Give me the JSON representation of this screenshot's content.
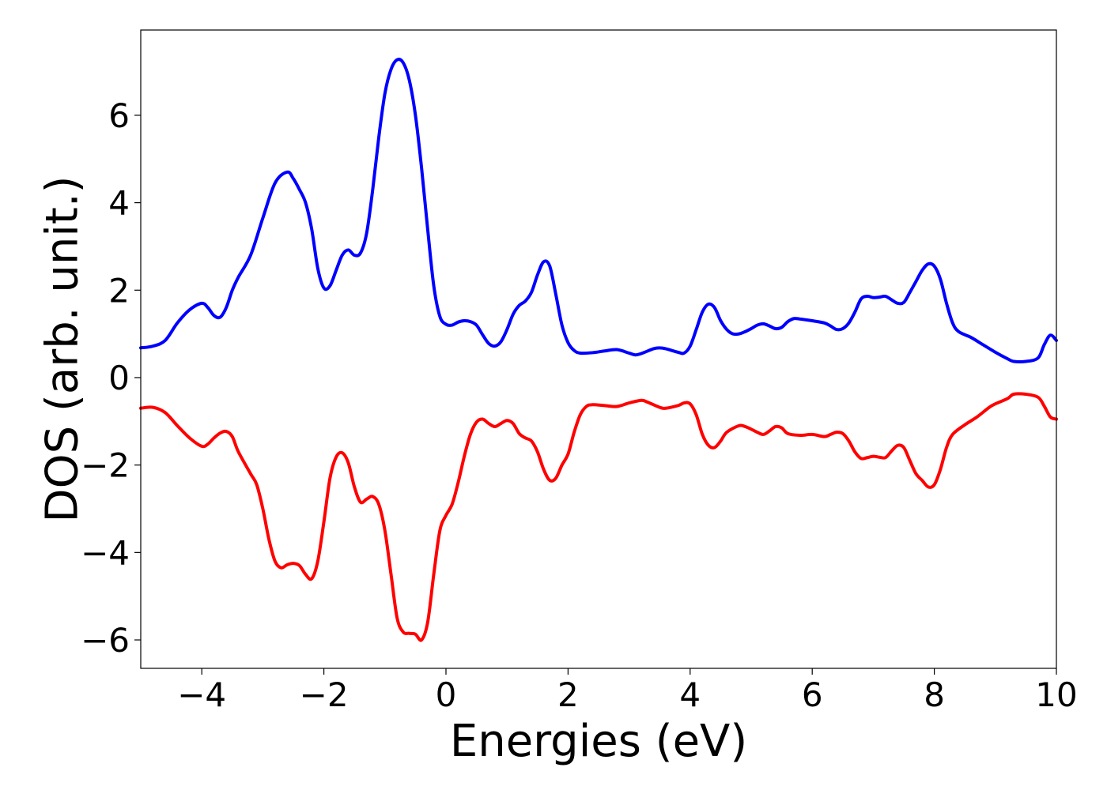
{
  "chart_data": {
    "type": "line",
    "title": "",
    "xlabel": "Energies (eV)",
    "ylabel": "DOS (arb. unit.)",
    "xlim": [
      -5,
      10
    ],
    "ylim": [
      -6.65,
      7.95
    ],
    "grid": false,
    "legend": "none",
    "x_ticks": [
      -4,
      -2,
      0,
      2,
      4,
      6,
      8,
      10
    ],
    "y_ticks": [
      -6,
      -4,
      -2,
      0,
      2,
      4,
      6
    ],
    "x_tick_labels": [
      "−4",
      "−2",
      "0",
      "2",
      "4",
      "6",
      "8",
      "10"
    ],
    "y_tick_labels": [
      "−6",
      "−4",
      "−2",
      "0",
      "2",
      "4",
      "6"
    ],
    "series": [
      {
        "color": "#0000ff",
        "points": [
          [
            -5.0,
            0.68
          ],
          [
            -4.8,
            0.72
          ],
          [
            -4.6,
            0.85
          ],
          [
            -4.4,
            1.25
          ],
          [
            -4.2,
            1.55
          ],
          [
            -4.0,
            1.7
          ],
          [
            -3.9,
            1.6
          ],
          [
            -3.8,
            1.42
          ],
          [
            -3.7,
            1.38
          ],
          [
            -3.6,
            1.6
          ],
          [
            -3.5,
            2.0
          ],
          [
            -3.4,
            2.3
          ],
          [
            -3.2,
            2.8
          ],
          [
            -3.0,
            3.65
          ],
          [
            -2.8,
            4.45
          ],
          [
            -2.6,
            4.7
          ],
          [
            -2.5,
            4.55
          ],
          [
            -2.4,
            4.3
          ],
          [
            -2.3,
            4.0
          ],
          [
            -2.2,
            3.4
          ],
          [
            -2.1,
            2.5
          ],
          [
            -2.0,
            2.05
          ],
          [
            -1.9,
            2.1
          ],
          [
            -1.8,
            2.45
          ],
          [
            -1.7,
            2.8
          ],
          [
            -1.6,
            2.92
          ],
          [
            -1.5,
            2.8
          ],
          [
            -1.4,
            2.85
          ],
          [
            -1.3,
            3.3
          ],
          [
            -1.2,
            4.3
          ],
          [
            -1.1,
            5.5
          ],
          [
            -1.0,
            6.5
          ],
          [
            -0.9,
            7.05
          ],
          [
            -0.8,
            7.27
          ],
          [
            -0.7,
            7.2
          ],
          [
            -0.6,
            6.8
          ],
          [
            -0.5,
            6.0
          ],
          [
            -0.4,
            4.8
          ],
          [
            -0.3,
            3.4
          ],
          [
            -0.2,
            2.1
          ],
          [
            -0.1,
            1.4
          ],
          [
            0.0,
            1.22
          ],
          [
            0.1,
            1.2
          ],
          [
            0.2,
            1.27
          ],
          [
            0.3,
            1.3
          ],
          [
            0.4,
            1.28
          ],
          [
            0.5,
            1.2
          ],
          [
            0.6,
            0.98
          ],
          [
            0.7,
            0.78
          ],
          [
            0.8,
            0.72
          ],
          [
            0.9,
            0.82
          ],
          [
            1.0,
            1.1
          ],
          [
            1.1,
            1.45
          ],
          [
            1.2,
            1.65
          ],
          [
            1.3,
            1.75
          ],
          [
            1.4,
            1.95
          ],
          [
            1.5,
            2.35
          ],
          [
            1.6,
            2.65
          ],
          [
            1.7,
            2.55
          ],
          [
            1.8,
            1.9
          ],
          [
            1.9,
            1.2
          ],
          [
            2.0,
            0.8
          ],
          [
            2.1,
            0.62
          ],
          [
            2.2,
            0.56
          ],
          [
            2.4,
            0.57
          ],
          [
            2.6,
            0.61
          ],
          [
            2.8,
            0.64
          ],
          [
            3.0,
            0.56
          ],
          [
            3.1,
            0.52
          ],
          [
            3.2,
            0.55
          ],
          [
            3.4,
            0.66
          ],
          [
            3.5,
            0.68
          ],
          [
            3.6,
            0.66
          ],
          [
            3.8,
            0.58
          ],
          [
            3.9,
            0.56
          ],
          [
            4.0,
            0.72
          ],
          [
            4.1,
            1.1
          ],
          [
            4.2,
            1.5
          ],
          [
            4.3,
            1.68
          ],
          [
            4.4,
            1.6
          ],
          [
            4.5,
            1.3
          ],
          [
            4.6,
            1.1
          ],
          [
            4.7,
            1.0
          ],
          [
            4.8,
            1.0
          ],
          [
            4.9,
            1.05
          ],
          [
            5.0,
            1.12
          ],
          [
            5.1,
            1.2
          ],
          [
            5.2,
            1.23
          ],
          [
            5.3,
            1.18
          ],
          [
            5.4,
            1.12
          ],
          [
            5.5,
            1.15
          ],
          [
            5.6,
            1.28
          ],
          [
            5.7,
            1.35
          ],
          [
            5.8,
            1.34
          ],
          [
            6.0,
            1.3
          ],
          [
            6.2,
            1.25
          ],
          [
            6.3,
            1.18
          ],
          [
            6.4,
            1.1
          ],
          [
            6.5,
            1.12
          ],
          [
            6.6,
            1.25
          ],
          [
            6.7,
            1.5
          ],
          [
            6.8,
            1.8
          ],
          [
            6.9,
            1.86
          ],
          [
            7.0,
            1.83
          ],
          [
            7.1,
            1.84
          ],
          [
            7.2,
            1.86
          ],
          [
            7.3,
            1.78
          ],
          [
            7.4,
            1.7
          ],
          [
            7.5,
            1.72
          ],
          [
            7.6,
            1.95
          ],
          [
            7.7,
            2.2
          ],
          [
            7.8,
            2.45
          ],
          [
            7.9,
            2.6
          ],
          [
            8.0,
            2.55
          ],
          [
            8.1,
            2.25
          ],
          [
            8.2,
            1.7
          ],
          [
            8.3,
            1.25
          ],
          [
            8.4,
            1.05
          ],
          [
            8.6,
            0.92
          ],
          [
            8.8,
            0.75
          ],
          [
            9.0,
            0.58
          ],
          [
            9.2,
            0.43
          ],
          [
            9.3,
            0.37
          ],
          [
            9.5,
            0.37
          ],
          [
            9.7,
            0.45
          ],
          [
            9.8,
            0.75
          ],
          [
            9.9,
            0.97
          ],
          [
            10.0,
            0.85
          ]
        ]
      },
      {
        "color": "#ff0000",
        "points": [
          [
            -5.0,
            -0.7
          ],
          [
            -4.8,
            -0.68
          ],
          [
            -4.6,
            -0.8
          ],
          [
            -4.4,
            -1.1
          ],
          [
            -4.2,
            -1.38
          ],
          [
            -4.0,
            -1.57
          ],
          [
            -3.9,
            -1.52
          ],
          [
            -3.8,
            -1.38
          ],
          [
            -3.7,
            -1.27
          ],
          [
            -3.6,
            -1.23
          ],
          [
            -3.5,
            -1.35
          ],
          [
            -3.4,
            -1.7
          ],
          [
            -3.2,
            -2.2
          ],
          [
            -3.1,
            -2.45
          ],
          [
            -3.0,
            -3.0
          ],
          [
            -2.9,
            -3.7
          ],
          [
            -2.8,
            -4.2
          ],
          [
            -2.7,
            -4.35
          ],
          [
            -2.6,
            -4.28
          ],
          [
            -2.5,
            -4.25
          ],
          [
            -2.4,
            -4.3
          ],
          [
            -2.3,
            -4.5
          ],
          [
            -2.2,
            -4.6
          ],
          [
            -2.1,
            -4.2
          ],
          [
            -2.0,
            -3.3
          ],
          [
            -1.9,
            -2.3
          ],
          [
            -1.8,
            -1.82
          ],
          [
            -1.7,
            -1.72
          ],
          [
            -1.6,
            -1.95
          ],
          [
            -1.5,
            -2.5
          ],
          [
            -1.4,
            -2.85
          ],
          [
            -1.3,
            -2.78
          ],
          [
            -1.2,
            -2.72
          ],
          [
            -1.1,
            -2.9
          ],
          [
            -1.0,
            -3.5
          ],
          [
            -0.9,
            -4.5
          ],
          [
            -0.8,
            -5.5
          ],
          [
            -0.7,
            -5.82
          ],
          [
            -0.6,
            -5.85
          ],
          [
            -0.5,
            -5.87
          ],
          [
            -0.4,
            -6.0
          ],
          [
            -0.3,
            -5.6
          ],
          [
            -0.2,
            -4.5
          ],
          [
            -0.1,
            -3.5
          ],
          [
            0.0,
            -3.15
          ],
          [
            0.1,
            -2.9
          ],
          [
            0.2,
            -2.4
          ],
          [
            0.3,
            -1.8
          ],
          [
            0.4,
            -1.3
          ],
          [
            0.5,
            -1.02
          ],
          [
            0.6,
            -0.95
          ],
          [
            0.7,
            -1.05
          ],
          [
            0.8,
            -1.12
          ],
          [
            0.9,
            -1.05
          ],
          [
            1.0,
            -0.98
          ],
          [
            1.1,
            -1.05
          ],
          [
            1.2,
            -1.28
          ],
          [
            1.3,
            -1.38
          ],
          [
            1.4,
            -1.45
          ],
          [
            1.5,
            -1.7
          ],
          [
            1.6,
            -2.1
          ],
          [
            1.7,
            -2.35
          ],
          [
            1.8,
            -2.3
          ],
          [
            1.9,
            -2.0
          ],
          [
            2.0,
            -1.75
          ],
          [
            2.1,
            -1.25
          ],
          [
            2.2,
            -0.85
          ],
          [
            2.3,
            -0.66
          ],
          [
            2.4,
            -0.62
          ],
          [
            2.6,
            -0.64
          ],
          [
            2.8,
            -0.66
          ],
          [
            3.0,
            -0.58
          ],
          [
            3.2,
            -0.52
          ],
          [
            3.3,
            -0.56
          ],
          [
            3.5,
            -0.68
          ],
          [
            3.6,
            -0.7
          ],
          [
            3.8,
            -0.64
          ],
          [
            3.9,
            -0.58
          ],
          [
            4.0,
            -0.6
          ],
          [
            4.1,
            -0.85
          ],
          [
            4.2,
            -1.3
          ],
          [
            4.3,
            -1.55
          ],
          [
            4.4,
            -1.6
          ],
          [
            4.5,
            -1.45
          ],
          [
            4.6,
            -1.25
          ],
          [
            4.8,
            -1.1
          ],
          [
            4.9,
            -1.12
          ],
          [
            5.0,
            -1.18
          ],
          [
            5.1,
            -1.25
          ],
          [
            5.2,
            -1.3
          ],
          [
            5.3,
            -1.22
          ],
          [
            5.4,
            -1.12
          ],
          [
            5.5,
            -1.15
          ],
          [
            5.6,
            -1.28
          ],
          [
            5.8,
            -1.32
          ],
          [
            6.0,
            -1.3
          ],
          [
            6.2,
            -1.35
          ],
          [
            6.3,
            -1.3
          ],
          [
            6.4,
            -1.25
          ],
          [
            6.5,
            -1.28
          ],
          [
            6.6,
            -1.45
          ],
          [
            6.7,
            -1.7
          ],
          [
            6.8,
            -1.85
          ],
          [
            6.9,
            -1.83
          ],
          [
            7.0,
            -1.8
          ],
          [
            7.1,
            -1.82
          ],
          [
            7.2,
            -1.83
          ],
          [
            7.3,
            -1.68
          ],
          [
            7.4,
            -1.55
          ],
          [
            7.5,
            -1.6
          ],
          [
            7.6,
            -1.9
          ],
          [
            7.7,
            -2.2
          ],
          [
            7.8,
            -2.35
          ],
          [
            7.9,
            -2.5
          ],
          [
            8.0,
            -2.45
          ],
          [
            8.1,
            -2.1
          ],
          [
            8.2,
            -1.6
          ],
          [
            8.3,
            -1.3
          ],
          [
            8.5,
            -1.08
          ],
          [
            8.7,
            -0.9
          ],
          [
            8.9,
            -0.68
          ],
          [
            9.0,
            -0.6
          ],
          [
            9.2,
            -0.48
          ],
          [
            9.3,
            -0.38
          ],
          [
            9.5,
            -0.38
          ],
          [
            9.7,
            -0.45
          ],
          [
            9.8,
            -0.65
          ],
          [
            9.9,
            -0.9
          ],
          [
            10.0,
            -0.95
          ]
        ]
      }
    ]
  }
}
